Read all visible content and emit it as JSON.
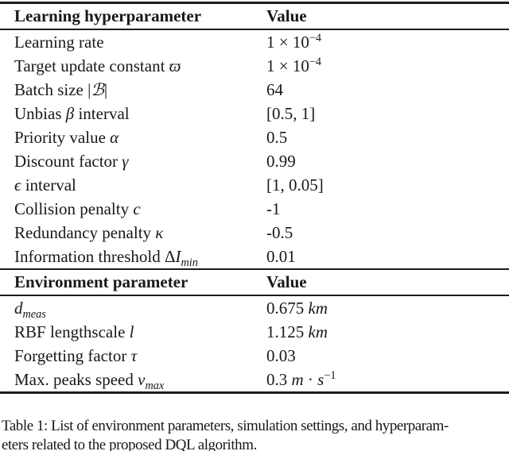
{
  "table1": {
    "header": {
      "param": "Learning hyperparameter",
      "value": "Value"
    },
    "rows": [
      {
        "param": [
          [
            "Learning rate"
          ]
        ],
        "value": [
          [
            "1 × 10"
          ],
          [
            "−4",
            "sup"
          ]
        ]
      },
      {
        "param": [
          [
            "Target update constant "
          ],
          [
            "ϖ",
            "i"
          ]
        ],
        "value": [
          [
            "1 × 10"
          ],
          [
            "−4",
            "sup"
          ]
        ]
      },
      {
        "param": [
          [
            "Batch size |"
          ],
          [
            "ℬ",
            "i"
          ],
          [
            "|"
          ]
        ],
        "value": [
          [
            "64"
          ]
        ]
      },
      {
        "param": [
          [
            "Unbias "
          ],
          [
            "β",
            "i"
          ],
          [
            " interval"
          ]
        ],
        "value": [
          [
            "[0.5, 1]"
          ]
        ]
      },
      {
        "param": [
          [
            "Priority value "
          ],
          [
            "α",
            "i"
          ]
        ],
        "value": [
          [
            "0.5"
          ]
        ]
      },
      {
        "param": [
          [
            "Discount factor "
          ],
          [
            "γ",
            "i"
          ]
        ],
        "value": [
          [
            "0.99"
          ]
        ]
      },
      {
        "param": [
          [
            "ϵ",
            "i"
          ],
          [
            " interval"
          ]
        ],
        "value": [
          [
            "[1, 0.05]"
          ]
        ]
      },
      {
        "param": [
          [
            "Collision penalty "
          ],
          [
            "c",
            "i"
          ]
        ],
        "value": [
          [
            "-1"
          ]
        ]
      },
      {
        "param": [
          [
            "Redundancy penalty "
          ],
          [
            "κ",
            "i"
          ]
        ],
        "value": [
          [
            "-0.5"
          ]
        ]
      },
      {
        "param": [
          [
            "Information threshold Δ"
          ],
          [
            "I",
            "i"
          ],
          [
            "min",
            "isub"
          ]
        ],
        "value": [
          [
            "0.01"
          ]
        ]
      }
    ]
  },
  "table2": {
    "header": {
      "param": "Environment parameter",
      "value": "Value"
    },
    "rows": [
      {
        "param": [
          [
            "d",
            "i"
          ],
          [
            "meas",
            "isub"
          ]
        ],
        "value": [
          [
            "0.675 "
          ],
          [
            "km",
            "i"
          ]
        ]
      },
      {
        "param": [
          [
            "RBF lengthscale "
          ],
          [
            "l",
            "i"
          ]
        ],
        "value": [
          [
            "1.125 "
          ],
          [
            "km",
            "i"
          ]
        ]
      },
      {
        "param": [
          [
            "Forgetting factor "
          ],
          [
            "τ",
            "i"
          ]
        ],
        "value": [
          [
            "0.03"
          ]
        ]
      },
      {
        "param": [
          [
            "Max. peaks speed "
          ],
          [
            "v",
            "i"
          ],
          [
            "max",
            "isub"
          ]
        ],
        "value": [
          [
            "0.3 "
          ],
          [
            "m",
            "i"
          ],
          [
            " · "
          ],
          [
            "s",
            "i"
          ],
          [
            "−1",
            "sup"
          ]
        ]
      }
    ]
  },
  "caption": {
    "line1": "Table 1: List of environment parameters, simulation settings, and hyperparam-",
    "line2": "eters related to the proposed DQL algorithm."
  }
}
